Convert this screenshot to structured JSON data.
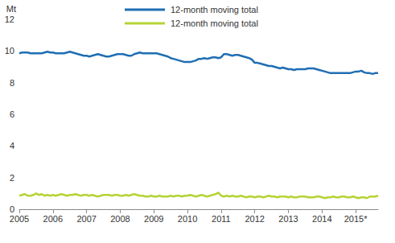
{
  "chart_data": {
    "type": "line",
    "y_label": "Mt",
    "categories": [
      "2005",
      null,
      null,
      null,
      null,
      null,
      null,
      null,
      null,
      null,
      null,
      null,
      "2006",
      null,
      null,
      null,
      null,
      null,
      null,
      null,
      null,
      null,
      null,
      null,
      "2007",
      null,
      null,
      null,
      null,
      null,
      null,
      null,
      null,
      null,
      null,
      null,
      "2008",
      null,
      null,
      null,
      null,
      null,
      null,
      null,
      null,
      null,
      null,
      null,
      "2009",
      null,
      null,
      null,
      null,
      null,
      null,
      null,
      null,
      null,
      null,
      null,
      "2010",
      null,
      null,
      null,
      null,
      null,
      null,
      null,
      null,
      null,
      null,
      null,
      "2011",
      null,
      null,
      null,
      null,
      null,
      null,
      null,
      null,
      null,
      null,
      null,
      "2012",
      null,
      null,
      null,
      null,
      null,
      null,
      null,
      null,
      null,
      null,
      null,
      "2013",
      null,
      null,
      null,
      null,
      null,
      null,
      null,
      null,
      null,
      null,
      null,
      "2014",
      null,
      null,
      null,
      null,
      null,
      null,
      null,
      null,
      null,
      null,
      null,
      "2015*",
      null,
      null,
      null,
      null,
      null,
      null,
      null,
      null
    ],
    "series": [
      {
        "name": "12-month moving total",
        "color": "#1f6eb3",
        "values": [
          9.85,
          9.9,
          9.9,
          9.9,
          9.85,
          9.85,
          9.85,
          9.85,
          9.85,
          9.9,
          9.95,
          9.9,
          9.9,
          9.85,
          9.85,
          9.85,
          9.85,
          9.9,
          9.95,
          9.9,
          9.85,
          9.8,
          9.75,
          9.7,
          9.7,
          9.65,
          9.7,
          9.75,
          9.8,
          9.75,
          9.7,
          9.65,
          9.65,
          9.7,
          9.75,
          9.8,
          9.8,
          9.8,
          9.75,
          9.7,
          9.7,
          9.8,
          9.85,
          9.9,
          9.85,
          9.85,
          9.85,
          9.85,
          9.85,
          9.85,
          9.8,
          9.75,
          9.7,
          9.65,
          9.55,
          9.5,
          9.45,
          9.4,
          9.35,
          9.3,
          9.3,
          9.3,
          9.35,
          9.4,
          9.5,
          9.5,
          9.55,
          9.5,
          9.55,
          9.6,
          9.6,
          9.55,
          9.6,
          9.8,
          9.8,
          9.75,
          9.7,
          9.75,
          9.75,
          9.7,
          9.65,
          9.6,
          9.55,
          9.45,
          9.25,
          9.25,
          9.2,
          9.15,
          9.1,
          9.05,
          9.05,
          9.0,
          8.95,
          8.9,
          8.95,
          8.9,
          8.85,
          8.85,
          8.8,
          8.85,
          8.85,
          8.85,
          8.85,
          8.9,
          8.9,
          8.9,
          8.85,
          8.8,
          8.75,
          8.7,
          8.65,
          8.6,
          8.6,
          8.6,
          8.6,
          8.6,
          8.6,
          8.6,
          8.6,
          8.65,
          8.7,
          8.7,
          8.75,
          8.65,
          8.6,
          8.6,
          8.55,
          8.6,
          8.6
        ]
      },
      {
        "name": "12-month moving total",
        "color": "#b5d334",
        "values": [
          0.85,
          0.9,
          0.95,
          0.85,
          0.85,
          0.9,
          1.0,
          0.9,
          0.95,
          0.85,
          0.9,
          0.85,
          0.9,
          0.85,
          0.9,
          0.95,
          0.9,
          0.85,
          0.9,
          0.9,
          0.95,
          0.9,
          0.85,
          0.9,
          0.9,
          0.85,
          0.9,
          0.85,
          0.8,
          0.85,
          0.9,
          0.9,
          0.9,
          0.85,
          0.9,
          0.9,
          0.85,
          0.85,
          0.9,
          0.85,
          0.9,
          0.95,
          0.9,
          0.85,
          0.85,
          0.8,
          0.8,
          0.85,
          0.8,
          0.8,
          0.85,
          0.8,
          0.8,
          0.8,
          0.85,
          0.8,
          0.85,
          0.85,
          0.8,
          0.85,
          0.85,
          0.9,
          0.85,
          0.8,
          0.85,
          0.9,
          0.85,
          0.8,
          0.85,
          0.9,
          0.95,
          1.05,
          0.85,
          0.8,
          0.85,
          0.8,
          0.85,
          0.8,
          0.8,
          0.85,
          0.8,
          0.75,
          0.8,
          0.8,
          0.75,
          0.8,
          0.8,
          0.75,
          0.8,
          0.85,
          0.8,
          0.8,
          0.75,
          0.8,
          0.8,
          0.8,
          0.75,
          0.8,
          0.75,
          0.75,
          0.8,
          0.8,
          0.8,
          0.75,
          0.75,
          0.75,
          0.8,
          0.8,
          0.75,
          0.7,
          0.75,
          0.75,
          0.8,
          0.75,
          0.75,
          0.8,
          0.8,
          0.75,
          0.75,
          0.8,
          0.75,
          0.7,
          0.75,
          0.75,
          0.7,
          0.8,
          0.8,
          0.8,
          0.85
        ]
      }
    ],
    "ylim": [
      0,
      12
    ],
    "yticks": [
      0,
      2,
      4,
      6,
      8,
      10,
      12
    ],
    "grid": false,
    "legend": "top"
  }
}
